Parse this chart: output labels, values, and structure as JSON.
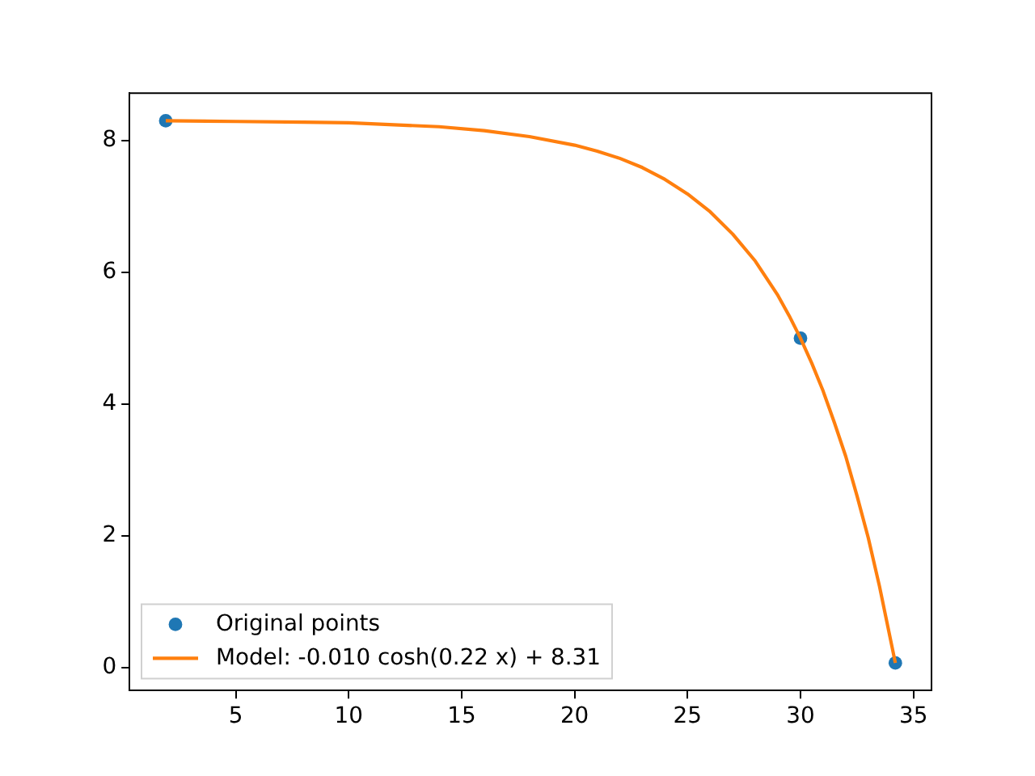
{
  "chart_data": {
    "type": "scatter",
    "series": [
      {
        "name": "Original points",
        "color": "#1f77b4",
        "marker": "circle",
        "x": [
          1.9,
          30.0,
          34.2
        ],
        "values": [
          8.3,
          5.0,
          0.07
        ]
      },
      {
        "name": "Model: -0.010 cosh(0.22 x) + 8.31",
        "type": "line",
        "color": "#ff7f0e",
        "marker": "none",
        "x": [
          1.9,
          5,
          8,
          10,
          12,
          14,
          16,
          18,
          20,
          21,
          22,
          23,
          24,
          25,
          26,
          27,
          28,
          29,
          29.5,
          30,
          30.5,
          31,
          31.5,
          32,
          32.5,
          33,
          33.5,
          34.2
        ],
        "values": [
          8.3,
          8.29,
          8.28,
          8.27,
          8.24,
          8.21,
          8.15,
          8.06,
          7.93,
          7.84,
          7.73,
          7.59,
          7.41,
          7.19,
          6.92,
          6.58,
          6.17,
          5.65,
          5.34,
          5.0,
          4.62,
          4.2,
          3.72,
          3.21,
          2.61,
          1.97,
          1.23,
          0.07
        ]
      }
    ],
    "xlim": [
      0.29,
      35.8
    ],
    "ylim": [
      -0.35,
      8.72
    ],
    "xticks": [
      5,
      10,
      15,
      20,
      25,
      30,
      35
    ],
    "yticks": [
      0,
      2,
      4,
      6,
      8
    ],
    "legend": "bottom left"
  }
}
